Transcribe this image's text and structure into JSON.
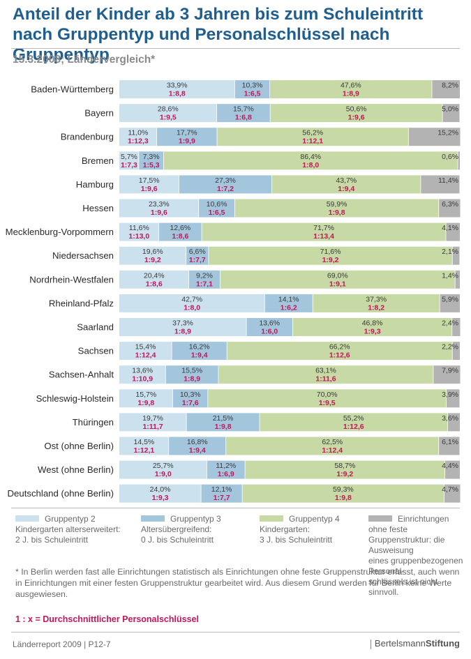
{
  "header": {
    "title": "Anteil der Kinder ab 3 Jahren bis zum Schuleintritt nach Gruppentyp und Personalschlüssel nach Gruppentyp",
    "subtitle": "15.3.2008; Ländervergleich*"
  },
  "colors": {
    "typ2": "#cce1ee",
    "typ3": "#a3c6dc",
    "typ4": "#c7d9a4",
    "other": "#b3b3b3",
    "ratio_text": "#c0185a",
    "title": "#1f5e8e"
  },
  "chart_data": {
    "type": "bar",
    "orientation": "horizontal-stacked-100",
    "categories": [
      "Baden-Württemberg",
      "Bayern",
      "Brandenburg",
      "Bremen",
      "Hamburg",
      "Hessen",
      "Mecklenburg-Vorpommern",
      "Niedersachsen",
      "Nordrhein-Westfalen",
      "Rheinland-Pfalz",
      "Saarland",
      "Sachsen",
      "Sachsen-Anhalt",
      "Schleswig-Holstein",
      "Thüringen",
      "Ost (ohne Berlin)",
      "West (ohne Berlin)",
      "Deutschland (ohne Berlin)"
    ],
    "series": [
      {
        "name": "Gruppentyp 2",
        "values": [
          33.9,
          28.6,
          11.0,
          5.7,
          17.5,
          23.3,
          11.6,
          19.6,
          20.4,
          42.7,
          37.3,
          15.4,
          13.6,
          15.7,
          19.7,
          14.5,
          25.7,
          24.0
        ],
        "labels": [
          "33,9%",
          "28,6%",
          "11,0%",
          "5,7%",
          "17,5%",
          "23,3%",
          "11,6%",
          "19,6%",
          "20,4%",
          "42,7%",
          "37,3%",
          "15,4%",
          "13,6%",
          "15,7%",
          "19,7%",
          "14,5%",
          "25,7%",
          "24,0%"
        ],
        "ratios": [
          "1:8,8",
          "1:9,5",
          "1:12,3",
          "1:7,3",
          "1:9,6",
          "1:9,6",
          "1:13,0",
          "1:9,2",
          "1:8,6",
          "1:8,0",
          "1:8,9",
          "1:12,4",
          "1:10,9",
          "1:9,8",
          "1:11,7",
          "1:12,1",
          "1:9,0",
          "1:9,3"
        ]
      },
      {
        "name": "Gruppentyp 3",
        "values": [
          10.3,
          15.7,
          17.7,
          7.3,
          27.3,
          10.6,
          12.6,
          6.6,
          9.2,
          14.1,
          13.6,
          16.2,
          15.5,
          10.3,
          21.5,
          16.8,
          11.2,
          12.1
        ],
        "labels": [
          "10,3%",
          "15,7%",
          "17,7%",
          "7,3%",
          "27,3%",
          "10,6%",
          "12,6%",
          "6,6%",
          "9,2%",
          "14,1%",
          "13,6%",
          "16,2%",
          "15,5%",
          "10,3%",
          "21,5%",
          "16,8%",
          "11,2%",
          "12,1%"
        ],
        "ratios": [
          "1:6,5",
          "1:6,8",
          "1:9,9",
          "1:5,3",
          "1:7,2",
          "1:6,5",
          "1:8,6",
          "1:7,7",
          "1:7,1",
          "1:6,2",
          "1:6,0",
          "1:9,4",
          "1:8,9",
          "1:7,6",
          "1:9,8",
          "1:9,4",
          "1:6,9",
          "1:7,7"
        ]
      },
      {
        "name": "Gruppentyp 4",
        "values": [
          47.6,
          50.6,
          56.2,
          86.4,
          43.7,
          59.9,
          71.7,
          71.6,
          69.0,
          37.3,
          46.8,
          66.2,
          63.1,
          70.0,
          55.2,
          62.5,
          58.7,
          59.3
        ],
        "labels": [
          "47,6%",
          "50,6%",
          "56,2%",
          "86,4%",
          "43,7%",
          "59,9%",
          "71,7%",
          "71,6%",
          "69,0%",
          "37,3%",
          "46,8%",
          "66,2%",
          "63,1%",
          "70,0%",
          "55,2%",
          "62,5%",
          "58,7%",
          "59,3%"
        ],
        "ratios": [
          "1:8,9",
          "1:9,6",
          "1:12,1",
          "1:8,0",
          "1:9,4",
          "1:9,8",
          "1:13,4",
          "1:9,2",
          "1:9,1",
          "1:8,2",
          "1:9,3",
          "1:12,6",
          "1:11,6",
          "1:9,5",
          "1:12,6",
          "1:12,4",
          "1:9,2",
          "1:9,8"
        ]
      },
      {
        "name": "Einrichtungen ohne feste Gruppenstruktur",
        "values": [
          8.2,
          5.0,
          15.2,
          0.6,
          11.4,
          6.3,
          4.1,
          2.1,
          1.4,
          5.9,
          2.4,
          2.2,
          7.9,
          3.9,
          3.6,
          6.1,
          4.4,
          4.7
        ],
        "labels": [
          "8,2%",
          "5,0%",
          "15,2%",
          "0,6%",
          "11,4%",
          "6,3%",
          "4,1%",
          "2,1%",
          "1,4%",
          "5,9%",
          "2,4%",
          "2,2%",
          "7,9%",
          "3,9%",
          "3,6%",
          "6,1%",
          "4,4%",
          "4,7%"
        ]
      }
    ],
    "xlim": [
      0,
      100
    ]
  },
  "legend": [
    {
      "name": "Gruppentyp 2",
      "line1": "Kindergarten alterserweitert:",
      "line2": "2 J.  bis Schuleintritt",
      "line3": ""
    },
    {
      "name": "Gruppentyp 3",
      "line1": "Altersübergreifend:",
      "line2": "0 J. bis Schuleintritt",
      "line3": ""
    },
    {
      "name": "Gruppentyp 4",
      "line1": "Kindergarten:",
      "line2": "3 J. bis Schuleintritt",
      "line3": ""
    },
    {
      "name": "Einrichtungen ohne feste",
      "line1": "Gruppenstruktur: die Ausweisung",
      "line2": "eines gruppenbezogenen Personal-",
      "line3": "schlüssels ist nicht sinnvoll."
    }
  ],
  "footnote": "* In Berlin werden fast alle Einrichtungen statistisch als Einrichtungen ohne feste Gruppenstruktur erfasst, auch wenn in Einrichtungen mit einer festen Gruppenstruktur gearbeitet wird. Aus diesem Grund werden für Berlin keine Werte ausgewiesen.",
  "keynote": "1 : x  = Durchschnittlicher Personalschlüssel",
  "footer": {
    "source": "Länderreport 2009 | P12-7",
    "brand_a": "Bertelsmann",
    "brand_b": "Stiftung"
  }
}
